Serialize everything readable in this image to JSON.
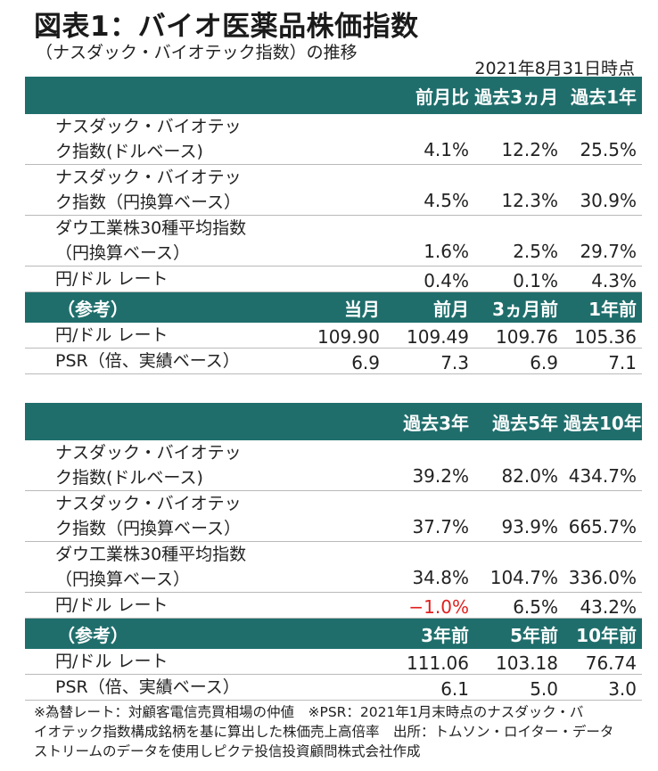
{
  "title": "図表1：バイオ医薬品株価指数",
  "subtitle": "（ナスダック・バイオテック指数）の推移",
  "as_of": "2021年8月31日時点",
  "table1": {
    "header": [
      "",
      "",
      "前月比",
      "過去3ヵ月",
      "過去1年"
    ],
    "rows": [
      {
        "label": "ナスダック・バイオテック指数(ドルベース)",
        "values": [
          "",
          "4.1%",
          "12.2%",
          "25.5%"
        ]
      },
      {
        "label": "ナスダック・バイオテック指数（円換算ベース）",
        "values": [
          "",
          "4.5%",
          "12.3%",
          "30.9%"
        ]
      },
      {
        "label": "ダウ工業株30種平均指数（円換算ベース）",
        "values": [
          "",
          "1.6%",
          "2.5%",
          "29.7%"
        ]
      },
      {
        "label": "円/ドル レート",
        "values": [
          "",
          "0.4%",
          "0.1%",
          "4.3%"
        ]
      }
    ],
    "ref_header": [
      "（参考）",
      "当月",
      "前月",
      "3ヵ月前",
      "1年前"
    ],
    "ref_rows": [
      {
        "label": "円/ドル レート",
        "values": [
          "109.90",
          "109.49",
          "109.76",
          "105.36"
        ]
      },
      {
        "label": "PSR（倍、実績ベース）",
        "values": [
          "6.9",
          "7.3",
          "6.9",
          "7.1"
        ]
      }
    ]
  },
  "table2": {
    "header": [
      "",
      "",
      "過去3年",
      "過去5年",
      "過去10年"
    ],
    "rows": [
      {
        "label": "ナスダック・バイオテック指数(ドルベース)",
        "values": [
          "",
          "39.2%",
          "82.0%",
          "434.7%"
        ]
      },
      {
        "label": "ナスダック・バイオテック指数（円換算ベース）",
        "values": [
          "",
          "37.7%",
          "93.9%",
          "665.7%"
        ]
      },
      {
        "label": "ダウ工業株30種平均指数（円換算ベース）",
        "values": [
          "",
          "34.8%",
          "104.7%",
          "336.0%"
        ]
      },
      {
        "label": "円/ドル レート",
        "values": [
          "",
          "−1.0%",
          "6.5%",
          "43.2%"
        ]
      }
    ],
    "ref_header": [
      "（参考）",
      "",
      "3年前",
      "5年前",
      "10年前"
    ],
    "ref_rows": [
      {
        "label": "円/ドル レート",
        "values": [
          "",
          "111.06",
          "103.18",
          "76.74"
        ]
      },
      {
        "label": "PSR（倍、実績ベース）",
        "values": [
          "",
          "6.1",
          "5.0",
          "3.0"
        ]
      }
    ]
  },
  "note_lines": [
    "※為替レート：対顧客電信売買相場の仲値　※PSR：2021年1月末時点のナスダック・バ",
    "イオテック指数構成銘柄を基に算出した株価売上高倍率　出所：トムソン・ロイター・データ",
    "ストリームのデータを使用しピクテ投信投資顧問株式会社作成"
  ],
  "colors": {
    "header_bg": "#1f6e6c",
    "negative": "#e02020"
  }
}
